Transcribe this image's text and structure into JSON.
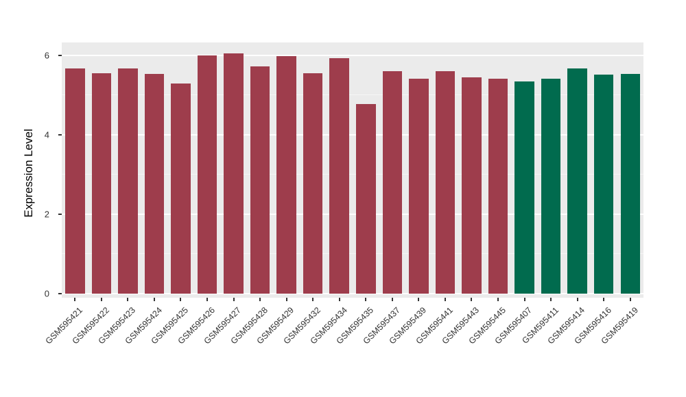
{
  "figure": {
    "background": "#FFFFFF",
    "plot_background": "#EBEBEB",
    "grid_color": "#FFFFFF",
    "axis_text_color": "#333333"
  },
  "chart_data": {
    "type": "bar",
    "title": "",
    "xlabel": "",
    "ylabel": "Expression Level",
    "legend_position": "none",
    "grid": true,
    "ylim": [
      0,
      6.3
    ],
    "yticks": [
      0,
      2,
      4,
      6
    ],
    "minor_gridlines": [
      1,
      3,
      5
    ],
    "categories": [
      "GSM595421",
      "GSM595422",
      "GSM595423",
      "GSM595424",
      "GSM595425",
      "GSM595426",
      "GSM595427",
      "GSM595428",
      "GSM595429",
      "GSM595432",
      "GSM595434",
      "GSM595435",
      "GSM595437",
      "GSM595439",
      "GSM595441",
      "GSM595443",
      "GSM595445",
      "GSM595407",
      "GSM595411",
      "GSM595414",
      "GSM595416",
      "GSM595419"
    ],
    "values": [
      5.68,
      5.55,
      5.68,
      5.53,
      5.3,
      6.0,
      6.06,
      5.73,
      5.98,
      5.55,
      5.93,
      4.77,
      5.6,
      5.42,
      5.6,
      5.45,
      5.42,
      5.35,
      5.42,
      5.67,
      5.52,
      5.54
    ],
    "bar_colors": [
      "#9E3D4C",
      "#9E3D4C",
      "#9E3D4C",
      "#9E3D4C",
      "#9E3D4C",
      "#9E3D4C",
      "#9E3D4C",
      "#9E3D4C",
      "#9E3D4C",
      "#9E3D4C",
      "#9E3D4C",
      "#9E3D4C",
      "#9E3D4C",
      "#9E3D4C",
      "#9E3D4C",
      "#9E3D4C",
      "#9E3D4C",
      "#016B4E",
      "#016B4E",
      "#016B4E",
      "#016B4E",
      "#016B4E"
    ],
    "group_colors": {
      "group_1": "#9E3D4C",
      "group_2": "#016B4E"
    }
  }
}
